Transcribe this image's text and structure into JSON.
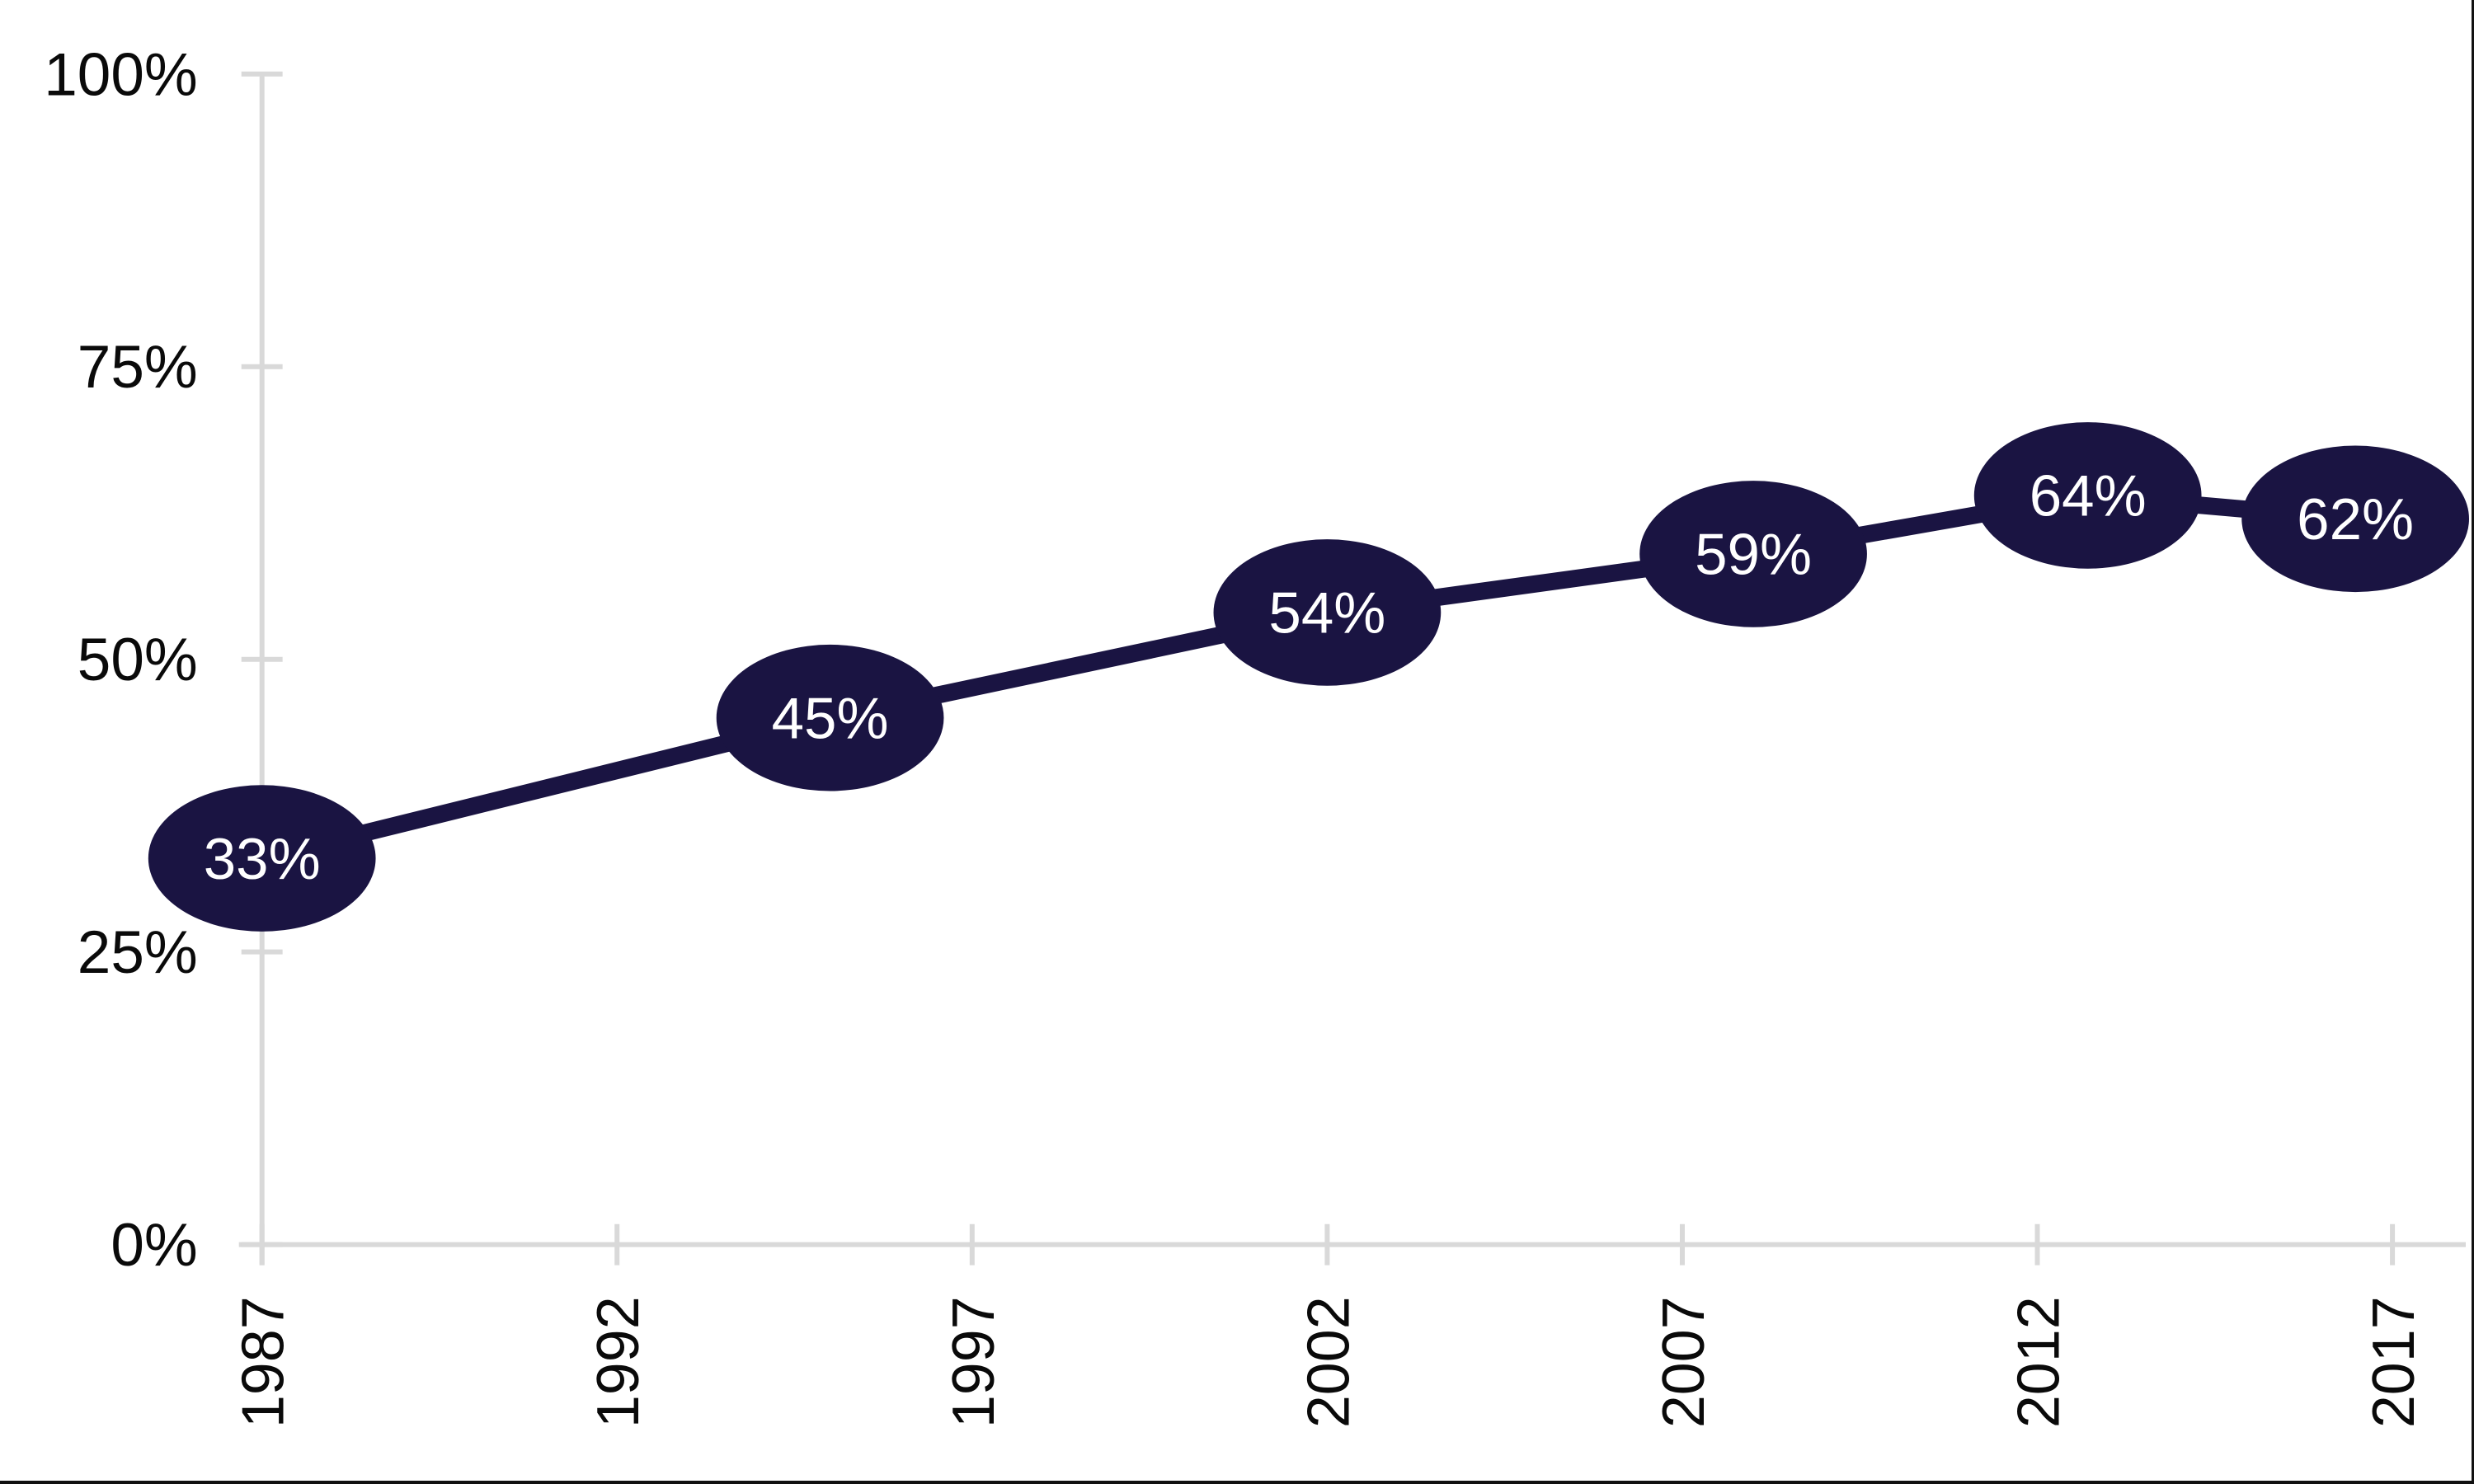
{
  "chart_data": {
    "type": "line",
    "title": "",
    "xlabel": "",
    "ylabel": "",
    "x": [
      1987,
      1995,
      2002,
      2008,
      2013,
      2017
    ],
    "values": [
      33,
      45,
      54,
      59,
      64,
      62
    ],
    "point_labels": [
      "33%",
      "45%",
      "54%",
      "59%",
      "64%",
      "62%"
    ],
    "x_ticks": [
      {
        "value": 1987,
        "label": "1987"
      },
      {
        "value": 1992,
        "label": "1992"
      },
      {
        "value": 1997,
        "label": "1997"
      },
      {
        "value": 2002,
        "label": "2002"
      },
      {
        "value": 2007,
        "label": "2007"
      },
      {
        "value": 2012,
        "label": "2012"
      },
      {
        "value": 2017,
        "label": "2017"
      }
    ],
    "y_ticks": [
      {
        "value": 0,
        "label": "0%"
      },
      {
        "value": 25,
        "label": "25%"
      },
      {
        "value": 50,
        "label": "50%"
      },
      {
        "value": 75,
        "label": "75%"
      },
      {
        "value": 100,
        "label": "100%"
      }
    ],
    "ylim": [
      0,
      100
    ],
    "xlim": [
      1987,
      2018
    ],
    "grid": false,
    "legend": false,
    "colors": {
      "series": "#1a1442",
      "point_fill": "#1a1442",
      "point_text": "#ffffff",
      "axis": "#d9d9d9",
      "tick_text": "#0a0a0a",
      "background": "#ffffff",
      "frame_border": "#111111"
    }
  }
}
